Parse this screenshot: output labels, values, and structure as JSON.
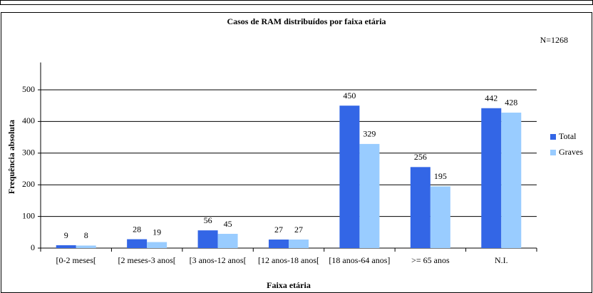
{
  "chart_data": {
    "type": "bar",
    "title": "Casos de RAM distribuídos por faixa etária",
    "annotation": "N=1268",
    "x_label": "Faixa etária",
    "y_label": "Frequência absoluta",
    "categories": [
      "[0-2 meses[",
      "[2 meses-3 anos[",
      "[3 anos-12 anos[",
      "[12 anos-18 anos[",
      "[18 anos-64 anos]",
      ">= 65 anos",
      "N.I."
    ],
    "series": [
      {
        "name": "Total",
        "color": "#3366e6",
        "values": [
          9,
          28,
          56,
          27,
          450,
          256,
          442
        ]
      },
      {
        "name": "Graves",
        "color": "#99ccff",
        "values": [
          8,
          19,
          45,
          27,
          329,
          195,
          428
        ]
      }
    ],
    "ylim": [
      0,
      600
    ],
    "yticks": [
      0,
      100,
      200,
      300,
      400,
      500
    ],
    "grid": true,
    "legend": "right"
  }
}
